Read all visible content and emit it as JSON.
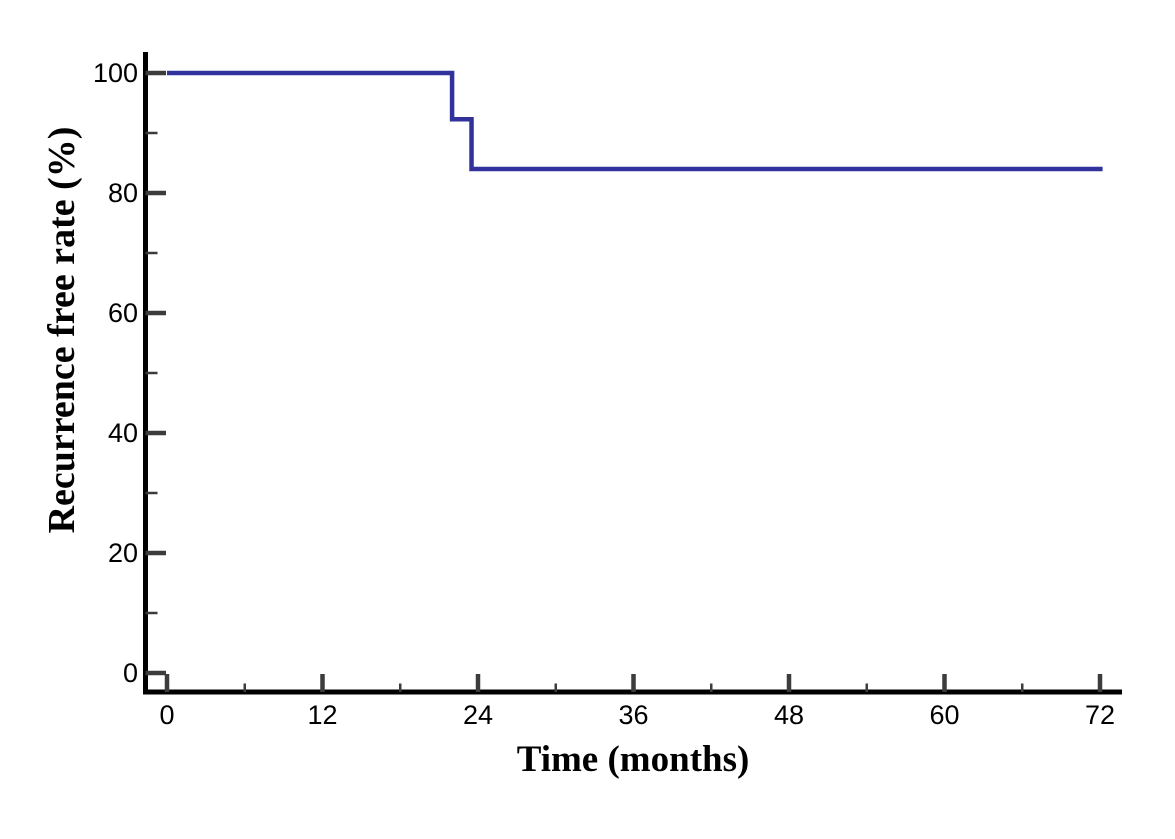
{
  "chart_data": {
    "type": "line",
    "subtype": "step-survival-curve",
    "title": "",
    "xlabel": "Time (months)",
    "ylabel": "Recurrence free rate (%)",
    "xlim": [
      0,
      72
    ],
    "ylim": [
      0,
      100
    ],
    "x_axis_overshoot_months": 1.7,
    "y_axis_overshoot_pct": 3.5,
    "xticks_major": [
      0,
      12,
      24,
      36,
      48,
      60,
      72
    ],
    "xticks_minor": [
      6,
      18,
      30,
      42,
      54,
      66
    ],
    "yticks_major": [
      100,
      80,
      60,
      40,
      20,
      0
    ],
    "yticks_minor": [
      90,
      70,
      50,
      30,
      10
    ],
    "grid": false,
    "legend": null,
    "series": [
      {
        "name": "Recurrence free rate",
        "color": "#31329b",
        "step_points": [
          {
            "t": 0,
            "rate": 100
          },
          {
            "t": 22,
            "rate": 100
          },
          {
            "t": 22,
            "rate": 92.3
          },
          {
            "t": 23.5,
            "rate": 92.3
          },
          {
            "t": 23.5,
            "rate": 84
          },
          {
            "t": 72.2,
            "rate": 84
          }
        ]
      }
    ]
  },
  "colors": {
    "background": "#ffffff",
    "axis": "#000000",
    "tick": "#3c3c3c",
    "tick_label": "#000000",
    "series_line": "#31329b"
  }
}
